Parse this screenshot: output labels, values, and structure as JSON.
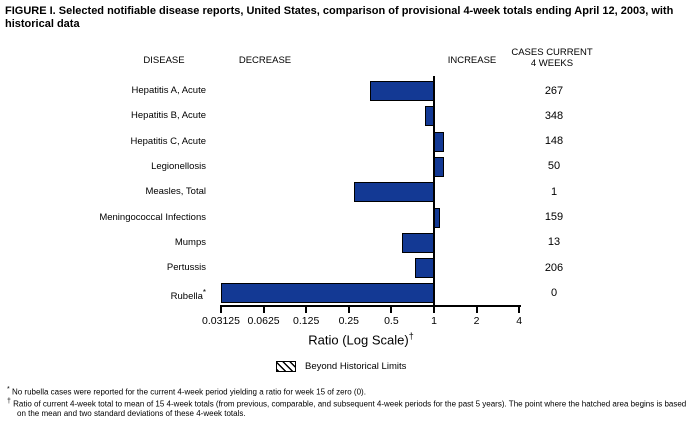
{
  "title": "FIGURE I. Selected notifiable disease reports, United States, comparison of provisional 4-week totals ending April 12, 2003, with historical data",
  "columns": {
    "disease": "DISEASE",
    "decrease": "DECREASE",
    "increase": "INCREASE",
    "cases_line1": "CASES CURRENT",
    "cases_line2": "4 WEEKS"
  },
  "chart_data": {
    "type": "bar",
    "orientation": "horizontal",
    "scale": "log2",
    "baseline_ratio": 1,
    "axis_range": [
      0.03125,
      4
    ],
    "axis_ticks": [
      "0.03125",
      "0.0625",
      "0.125",
      "0.25",
      "0.5",
      "1",
      "2",
      "4"
    ],
    "xlabel": "Ratio (Log Scale)",
    "xlabel_sup": "†",
    "bar_color": "#133994",
    "rows": [
      {
        "disease": "Hepatitis A, Acute",
        "marker": "",
        "ratio": 0.35,
        "cases": "267"
      },
      {
        "disease": "Hepatitis B, Acute",
        "marker": "",
        "ratio": 0.86,
        "cases": "348"
      },
      {
        "disease": "Hepatitis C, Acute",
        "marker": "",
        "ratio": 1.15,
        "cases": "148"
      },
      {
        "disease": "Legionellosis",
        "marker": "",
        "ratio": 1.15,
        "cases": "50"
      },
      {
        "disease": "Measles, Total",
        "marker": "",
        "ratio": 0.27,
        "cases": "1"
      },
      {
        "disease": "Meningococcal Infections",
        "marker": "",
        "ratio": 1.08,
        "cases": "159"
      },
      {
        "disease": "Mumps",
        "marker": "",
        "ratio": 0.59,
        "cases": "13"
      },
      {
        "disease": "Pertussis",
        "marker": "",
        "ratio": 0.73,
        "cases": "206"
      },
      {
        "disease": "Rubella",
        "marker": "*",
        "ratio": 0.03125,
        "cases": "0"
      }
    ]
  },
  "legend": {
    "label": "Beyond Historical Limits"
  },
  "footnotes": [
    {
      "marker": "*",
      "text": "No rubella cases were reported for the current 4-week period yielding a ratio for week 15 of zero (0)."
    },
    {
      "marker": "†",
      "text": "Ratio of current 4-week total to mean of 15 4-week totals (from previous, comparable, and subsequent 4-week periods for the past 5 years). The point where the hatched area begins is based on the mean and two standard deviations of these 4-week totals."
    }
  ]
}
